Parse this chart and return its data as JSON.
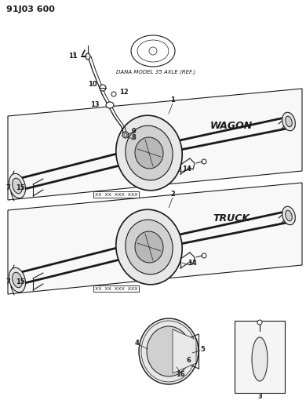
{
  "title": "91J03 600",
  "background_color": "#ffffff",
  "dana_label": "DANA MODEL 35 AXLE (REF.)",
  "wagon_label": "WAGON",
  "truck_label": "TRUCK",
  "line_color": "#1a1a1a",
  "fill_light": "#e8e8e8",
  "fill_mid": "#d0d0d0",
  "fill_dark": "#b8b8b8"
}
